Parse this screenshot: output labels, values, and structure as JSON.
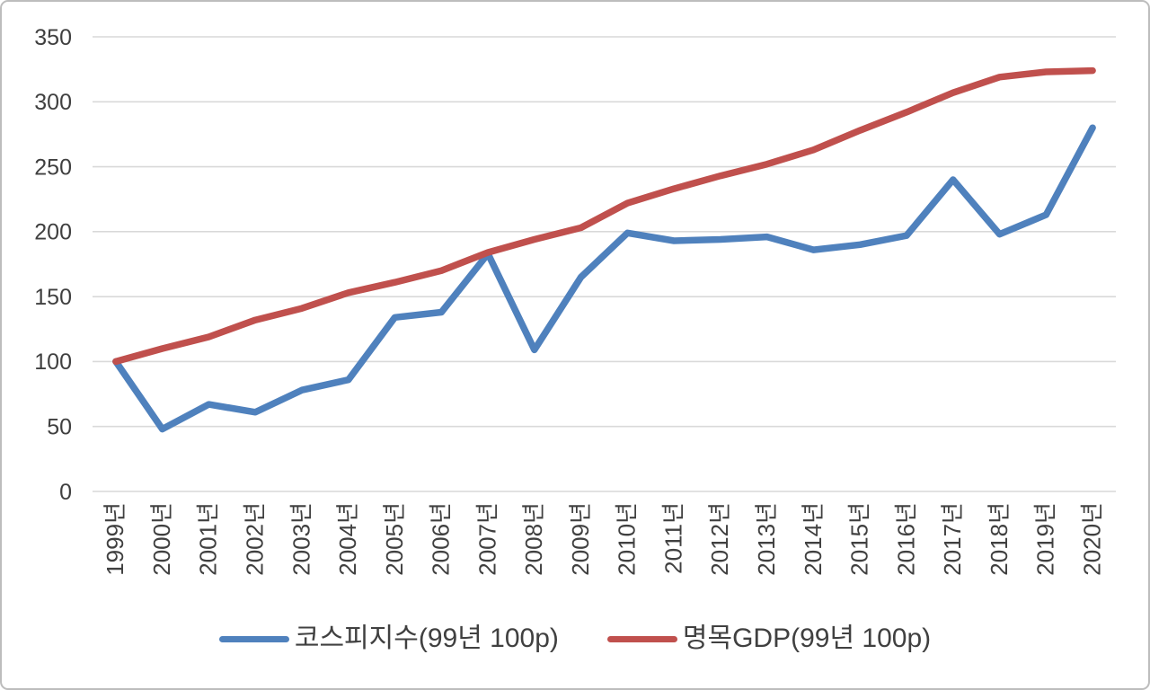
{
  "chart_data": {
    "type": "line",
    "title": "",
    "xlabel": "",
    "ylabel": "",
    "categories": [
      "1999년",
      "2000년",
      "2001년",
      "2002년",
      "2003년",
      "2004년",
      "2005년",
      "2006년",
      "2007년",
      "2008년",
      "2009년",
      "2010년",
      "2011년",
      "2012년",
      "2013년",
      "2014년",
      "2015년",
      "2016년",
      "2017년",
      "2018년",
      "2019년",
      "2020년"
    ],
    "series": [
      {
        "name": "코스피지수(99년 100p)",
        "color": "#4F81BD",
        "values": [
          100,
          48,
          67,
          61,
          78,
          86,
          134,
          138,
          183,
          109,
          165,
          199,
          193,
          194,
          196,
          186,
          190,
          197,
          240,
          198,
          213,
          280
        ]
      },
      {
        "name": "명목GDP(99년 100p)",
        "color": "#C0504D",
        "values": [
          100,
          110,
          119,
          132,
          141,
          153,
          161,
          170,
          184,
          194,
          203,
          222,
          233,
          243,
          252,
          263,
          278,
          292,
          307,
          319,
          323,
          324
        ]
      }
    ],
    "ylim": [
      0,
      350
    ],
    "y_tick_step": 50,
    "y_tick_labels": [
      "0",
      "50",
      "100",
      "150",
      "200",
      "250",
      "300",
      "350"
    ],
    "grid": "horizontal",
    "legend_position": "bottom"
  },
  "styles": {
    "background_color": "#FFFFFF",
    "border_color": "#BDBDBD",
    "grid_color": "#D9D9D9",
    "axis_text_color": "#404040",
    "legend_text_color": "#404040",
    "line_width": 7.5
  }
}
